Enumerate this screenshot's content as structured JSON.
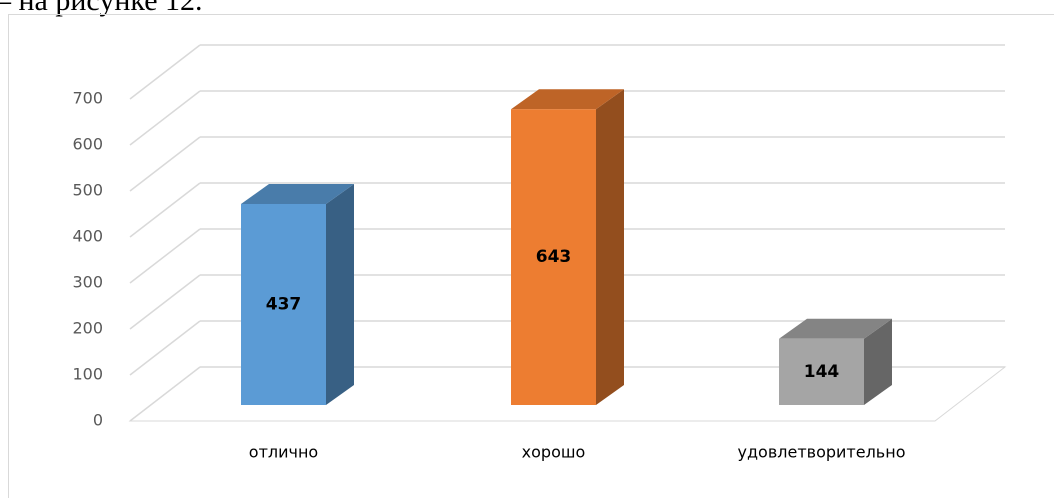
{
  "text_fragment": "– на рисунке 12.",
  "chart_data": {
    "type": "bar3d",
    "categories": [
      "отлично",
      "хорошо",
      "удовлетворительно"
    ],
    "values": [
      437,
      643,
      144
    ],
    "colors": [
      "#5b9bd5",
      "#ed7d31",
      "#a5a5a5"
    ],
    "ylim": [
      0,
      700
    ],
    "yticks": [
      0,
      100,
      200,
      300,
      400,
      500,
      600,
      700
    ],
    "grid": true
  }
}
